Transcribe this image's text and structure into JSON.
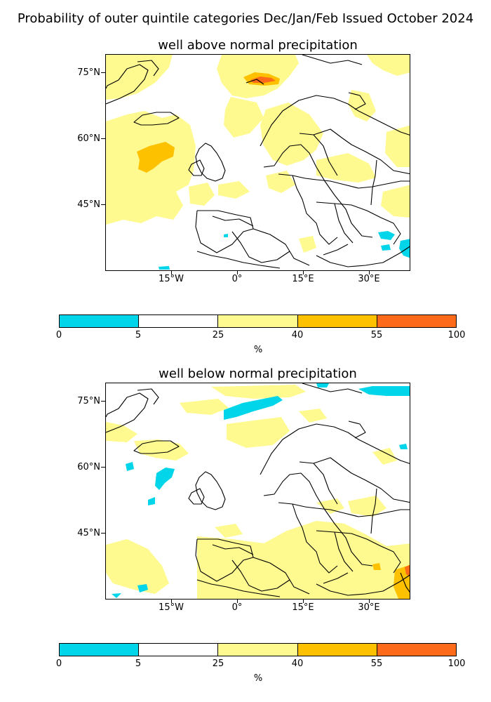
{
  "title": "Probability of outer quintile categories Dec/Jan/Feb Issued October 2024",
  "panels": [
    {
      "title": "well above normal precipitation"
    },
    {
      "title": "well below normal precipitation"
    }
  ],
  "axes": {
    "lat_labels": [
      "75°N",
      "60°N",
      "45°N"
    ],
    "lon_labels": [
      "15°W",
      "0°",
      "15°E",
      "30°E"
    ]
  },
  "colorbar": {
    "bounds": [
      "0",
      "5",
      "25",
      "40",
      "55",
      "100"
    ],
    "colors": [
      "#00d5ea",
      "#ffffff",
      "#fefa8f",
      "#fdc100",
      "#fd6b1a"
    ],
    "unit": "%"
  }
}
